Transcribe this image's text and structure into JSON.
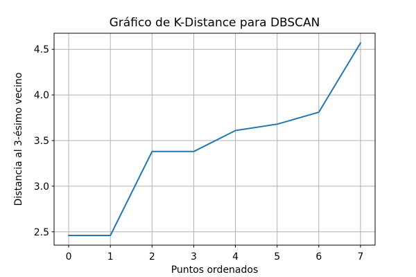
{
  "chart_data": {
    "type": "line",
    "title": "Gráfico de K-Distance para DBSCAN",
    "xlabel": "Puntos ordenados",
    "ylabel": "Distancia al 3-ésimo vecino",
    "x": [
      0,
      1,
      2,
      3,
      4,
      5,
      6,
      7
    ],
    "y": [
      2.46,
      2.46,
      3.38,
      3.38,
      3.61,
      3.68,
      3.81,
      4.57
    ],
    "xlim": [
      -0.35,
      7.35
    ],
    "ylim": [
      2.354,
      4.676
    ],
    "xticks": [
      0,
      1,
      2,
      3,
      4,
      5,
      6,
      7
    ],
    "xtick_labels": [
      "0",
      "1",
      "2",
      "3",
      "4",
      "5",
      "6",
      "7"
    ],
    "yticks": [
      2.5,
      3.0,
      3.5,
      4.0,
      4.5
    ],
    "ytick_labels": [
      "2.5",
      "3.0",
      "3.5",
      "4.0",
      "4.5"
    ],
    "grid": true,
    "legend": "none",
    "line_color": "#1f77b4",
    "grid_color": "#b0b0b0",
    "axis_color": "#000000",
    "background_color": "#ffffff"
  }
}
